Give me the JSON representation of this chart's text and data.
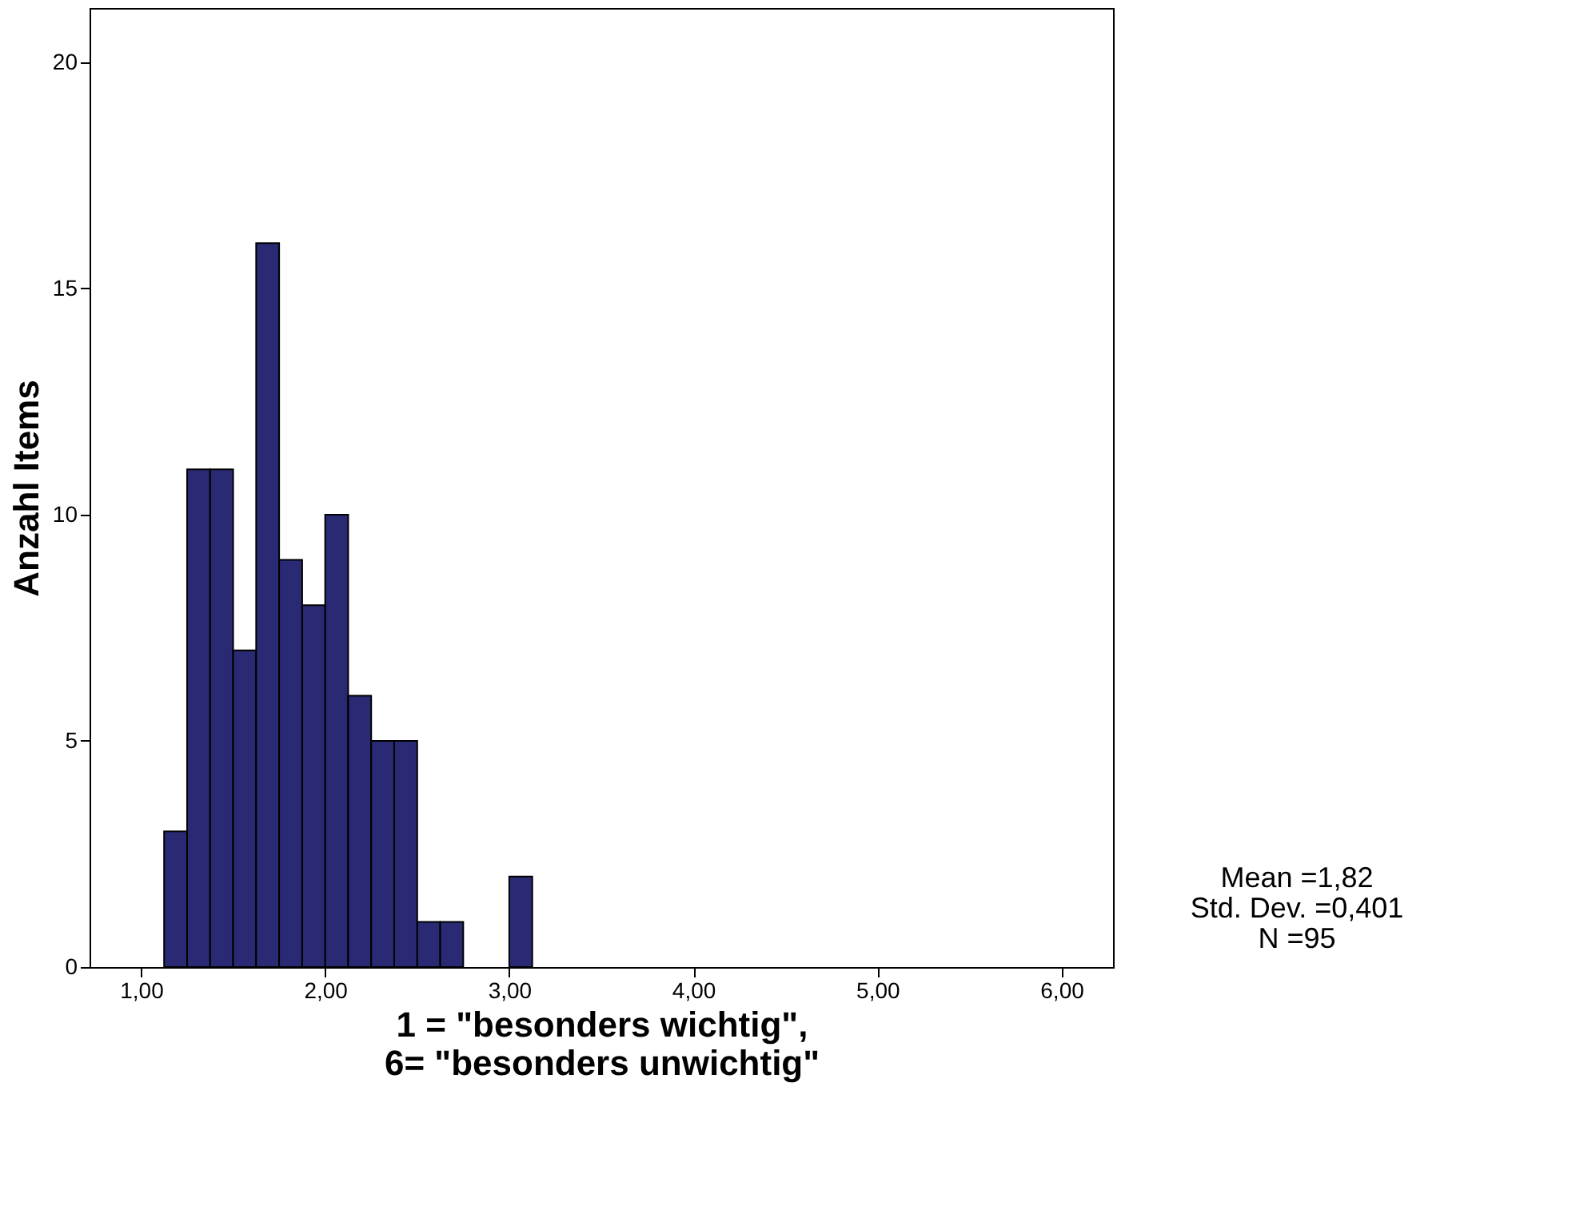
{
  "chart_data": {
    "type": "histogram",
    "xlabel": "1 = \"besonders wichtig\",\n6= \"besonders unwichtig\"",
    "ylabel": "Anzahl Items",
    "bins": [
      1.125,
      1.25,
      1.375,
      1.5,
      1.625,
      1.75,
      1.875,
      2.0,
      2.125,
      2.25,
      2.375,
      2.5,
      2.625,
      2.75,
      2.875,
      3.0,
      3.125
    ],
    "values": [
      3,
      11,
      11,
      7,
      16,
      9,
      8,
      10,
      6,
      5,
      5,
      1,
      1,
      0,
      0,
      2
    ],
    "color": "#292a73",
    "xlim": [
      0.72,
      6.28
    ],
    "xticks": [
      {
        "value": 1,
        "label": "1,00"
      },
      {
        "value": 2,
        "label": "2,00"
      },
      {
        "value": 3,
        "label": "3,00"
      },
      {
        "value": 4,
        "label": "4,00"
      },
      {
        "value": 5,
        "label": "5,00"
      },
      {
        "value": 6,
        "label": "6,00"
      }
    ],
    "ylim": [
      0,
      21.2
    ],
    "yticks": [
      0,
      5,
      10,
      15,
      20
    ],
    "grid": false,
    "annotations": [
      "Mean =1,82",
      "Std. Dev. =0,401",
      "N =95"
    ]
  }
}
